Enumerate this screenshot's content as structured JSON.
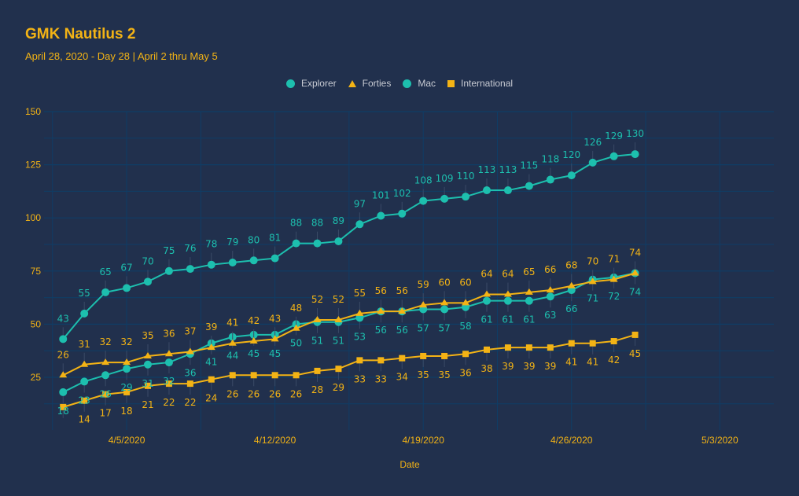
{
  "header": {
    "title": "GMK Nautilus 2",
    "subtitle": "April 28, 2020 - Day 28 | April 2 thru May 5"
  },
  "colors": {
    "background": "#21304d",
    "accent": "#f3b315",
    "teal": "#1dbfae",
    "grid": "#0f3d66",
    "legend_text": "#c8cbd3"
  },
  "legend": [
    {
      "label": "Explorer",
      "marker": "circle",
      "color": "#1dbfae"
    },
    {
      "label": "Forties",
      "marker": "triangle",
      "color": "#f3b315"
    },
    {
      "label": "Mac",
      "marker": "circle",
      "color": "#1dbfae"
    },
    {
      "label": "International",
      "marker": "square",
      "color": "#f3b315"
    }
  ],
  "chart_data": {
    "type": "line",
    "title": "GMK Nautilus 2",
    "subtitle": "April 28, 2020 - Day 28 | April 2 thru May 5",
    "xlabel": "Date",
    "ylabel": "",
    "x": [
      "4/2/2020",
      "4/3/2020",
      "4/4/2020",
      "4/5/2020",
      "4/6/2020",
      "4/7/2020",
      "4/8/2020",
      "4/9/2020",
      "4/10/2020",
      "4/11/2020",
      "4/12/2020",
      "4/13/2020",
      "4/14/2020",
      "4/15/2020",
      "4/16/2020",
      "4/17/2020",
      "4/18/2020",
      "4/19/2020",
      "4/20/2020",
      "4/21/2020",
      "4/22/2020",
      "4/23/2020",
      "4/24/2020",
      "4/25/2020",
      "4/26/2020",
      "4/27/2020",
      "4/28/2020",
      "4/29/2020"
    ],
    "x_range": [
      "4/1/2020",
      "5/5/2020"
    ],
    "x_ticks": [
      "4/5/2020",
      "4/12/2020",
      "4/19/2020",
      "4/26/2020",
      "5/3/2020"
    ],
    "ylim": [
      0,
      150
    ],
    "y_ticks": [
      25,
      50,
      75,
      100,
      125,
      150
    ],
    "grid": true,
    "legend_position": "top-center",
    "series": [
      {
        "name": "Explorer",
        "marker": "circle",
        "color": "#1dbfae",
        "label_position": "above",
        "values": [
          43,
          55,
          65,
          67,
          70,
          75,
          76,
          78,
          79,
          80,
          81,
          88,
          88,
          89,
          97,
          101,
          102,
          108,
          109,
          110,
          113,
          113,
          115,
          118,
          120,
          126,
          129,
          130
        ]
      },
      {
        "name": "Forties",
        "marker": "triangle",
        "color": "#f3b315",
        "label_position": "above",
        "values": [
          26,
          31,
          32,
          32,
          35,
          36,
          37,
          39,
          41,
          42,
          43,
          48,
          52,
          52,
          55,
          56,
          56,
          59,
          60,
          60,
          64,
          64,
          65,
          66,
          68,
          70,
          71,
          74
        ]
      },
      {
        "name": "Mac",
        "marker": "circle",
        "color": "#1dbfae",
        "label_position": "below",
        "values": [
          18,
          23,
          26,
          29,
          31,
          32,
          36,
          41,
          44,
          45,
          45,
          50,
          51,
          51,
          53,
          56,
          56,
          57,
          57,
          58,
          61,
          61,
          61,
          63,
          66,
          71,
          72,
          74
        ]
      },
      {
        "name": "International",
        "marker": "square",
        "color": "#f3b315",
        "label_position": "below",
        "values": [
          11,
          14,
          17,
          18,
          21,
          22,
          22,
          24,
          26,
          26,
          26,
          26,
          28,
          29,
          33,
          33,
          34,
          35,
          35,
          36,
          38,
          39,
          39,
          39,
          41,
          41,
          42,
          45
        ]
      }
    ],
    "data_labels": {
      "Explorer": [
        "43",
        "55",
        "65",
        "67",
        "70",
        "75",
        "76",
        "78",
        "79",
        "80",
        "81",
        "88",
        "88",
        "89",
        "97",
        "101",
        "102",
        "108",
        "109",
        "110",
        "113",
        "113",
        "115",
        "118",
        "120",
        "126",
        "129",
        "130"
      ],
      "Forties": [
        "26",
        "31",
        "32",
        "32",
        "35",
        "36",
        "37",
        "39",
        "41",
        "42",
        "43",
        "48",
        "52",
        "52",
        "55",
        "56",
        "56",
        "59",
        "60",
        "60",
        "64",
        "64",
        "65",
        "66",
        "68",
        "70",
        "71",
        "74"
      ],
      "Mac": [
        "18",
        "23",
        "26",
        "29",
        "31",
        "32",
        "36",
        "41",
        "44",
        "45",
        "45",
        "50",
        "51",
        "51",
        "53",
        "56",
        "56",
        "57",
        "57",
        "58",
        "61",
        "61",
        "61",
        "63",
        "66",
        "71",
        "72",
        "74"
      ],
      "International": [
        "",
        "14",
        "17",
        "18",
        "21",
        "22",
        "22",
        "24",
        "26",
        "26",
        "26",
        "26",
        "28",
        "29",
        "33",
        "33",
        "34",
        "35",
        "35",
        "36",
        "38",
        "39",
        "39",
        "39",
        "41",
        "41",
        "42",
        "45"
      ]
    }
  }
}
